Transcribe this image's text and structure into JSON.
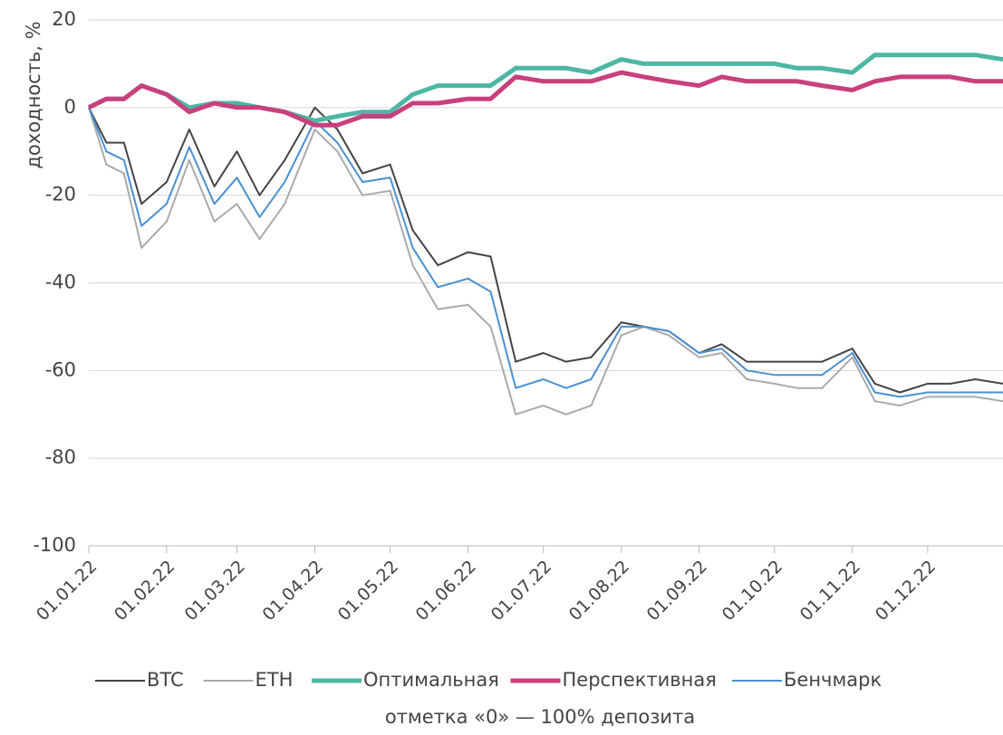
{
  "chart_data": {
    "type": "line",
    "ylabel": "доходность, %",
    "note": "отметка «0» — 100% депозита",
    "x": [
      "01.01.22",
      "08.01.22",
      "15.01.22",
      "22.01.22",
      "01.02.22",
      "10.02.22",
      "20.02.22",
      "01.03.22",
      "10.03.22",
      "20.03.22",
      "01.04.22",
      "10.04.22",
      "20.04.22",
      "01.05.22",
      "10.05.22",
      "20.05.22",
      "01.06.22",
      "10.06.22",
      "20.06.22",
      "01.07.22",
      "10.07.22",
      "20.07.22",
      "01.08.22",
      "10.08.22",
      "20.08.22",
      "01.09.22",
      "10.09.22",
      "20.09.22",
      "01.10.22",
      "10.10.22",
      "20.10.22",
      "01.11.22",
      "10.11.22",
      "20.11.22",
      "01.12.22",
      "10.12.22",
      "20.12.22",
      "31.12.22"
    ],
    "xlim": [
      "01.01.22",
      "31.12.22"
    ],
    "xticks": [
      "01.01.22",
      "01.02.22",
      "01.03.22",
      "01.04.22",
      "01.05.22",
      "01.06.22",
      "01.07.22",
      "01.08.22",
      "01.09.22",
      "01.10.22",
      "01.11.22",
      "01.12.22"
    ],
    "ylim": [
      -100,
      20
    ],
    "yticks": [
      -100,
      -80,
      -60,
      -40,
      -20,
      0,
      20
    ],
    "grid": true,
    "legend": "bottom",
    "series": [
      {
        "name": "BTC",
        "color": "#444444",
        "width": 2,
        "values": [
          0,
          -8,
          -8,
          -22,
          -17,
          -5,
          -18,
          -10,
          -20,
          -12,
          0,
          -5,
          -15,
          -13,
          -28,
          -36,
          -33,
          -34,
          -58,
          -56,
          -58,
          -57,
          -49,
          -50,
          -51,
          -56,
          -54,
          -58,
          -58,
          -58,
          -58,
          -55,
          -63,
          -65,
          -63,
          -63,
          -62,
          -63
        ]
      },
      {
        "name": "ETH",
        "color": "#aaaaaa",
        "width": 2,
        "values": [
          0,
          -13,
          -15,
          -32,
          -26,
          -12,
          -26,
          -22,
          -30,
          -22,
          -5,
          -10,
          -20,
          -19,
          -36,
          -46,
          -45,
          -50,
          -70,
          -68,
          -70,
          -68,
          -52,
          -50,
          -52,
          -57,
          -56,
          -62,
          -63,
          -64,
          -64,
          -57,
          -67,
          -68,
          -66,
          -66,
          -66,
          -67
        ]
      },
      {
        "name": "Оптимальная",
        "color": "#4db6a4",
        "width": 5,
        "values": [
          0,
          2,
          2,
          5,
          3,
          0,
          1,
          1,
          0,
          -1,
          -3,
          -2,
          -1,
          -1,
          3,
          5,
          5,
          5,
          9,
          9,
          9,
          8,
          11,
          10,
          10,
          10,
          10,
          10,
          10,
          9,
          9,
          8,
          12,
          12,
          12,
          12,
          12,
          11
        ]
      },
      {
        "name": "Перспективная",
        "color": "#c8407d",
        "width": 5,
        "values": [
          0,
          2,
          2,
          5,
          3,
          -1,
          1,
          0,
          0,
          -1,
          -4,
          -4,
          -2,
          -2,
          1,
          1,
          2,
          2,
          7,
          6,
          6,
          6,
          8,
          7,
          6,
          5,
          7,
          6,
          6,
          6,
          5,
          4,
          6,
          7,
          7,
          7,
          6,
          6
        ]
      },
      {
        "name": "Бенчмарк",
        "color": "#4a90d0",
        "width": 2,
        "values": [
          0,
          -10,
          -12,
          -27,
          -22,
          -9,
          -22,
          -16,
          -25,
          -17,
          -3,
          -8,
          -17,
          -16,
          -32,
          -41,
          -39,
          -42,
          -64,
          -62,
          -64,
          -62,
          -50,
          -50,
          -51,
          -56,
          -55,
          -60,
          -61,
          -61,
          -61,
          -56,
          -65,
          -66,
          -65,
          -65,
          -65,
          -65
        ]
      }
    ]
  }
}
